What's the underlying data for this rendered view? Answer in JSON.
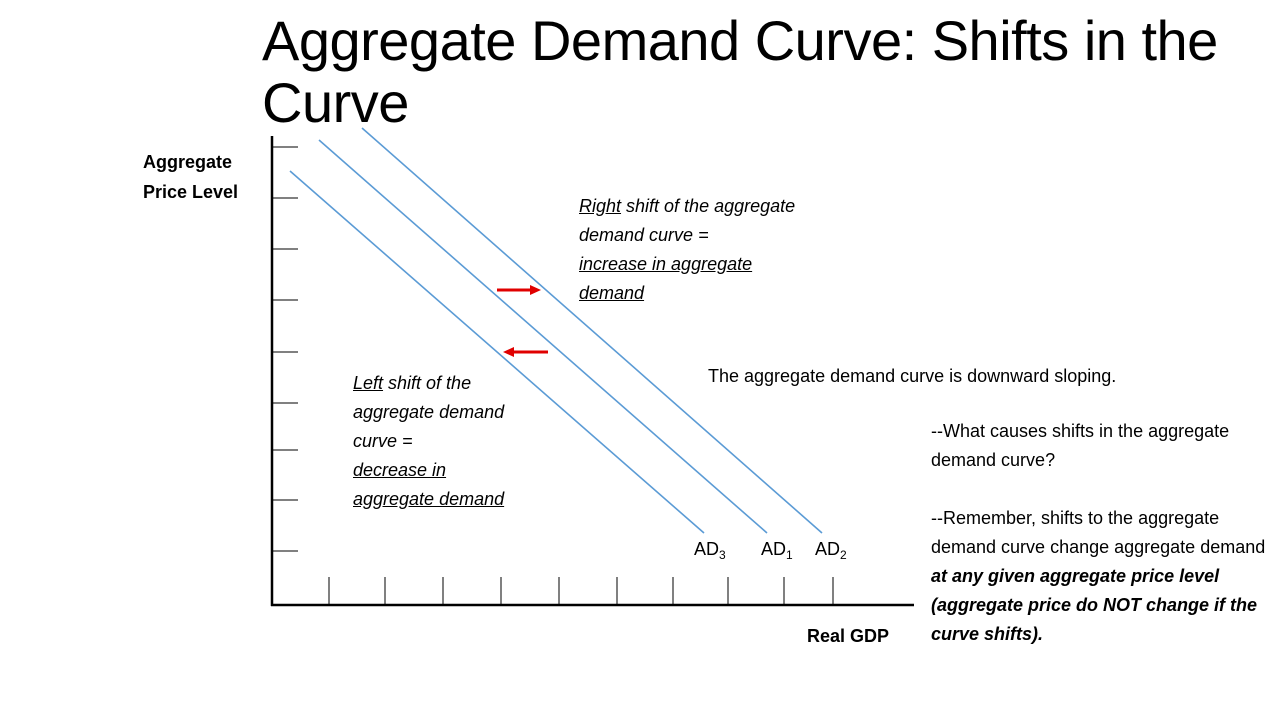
{
  "title": "Aggregate Demand Curve:  Shifts in the Curve",
  "axes": {
    "y_label_line1": "Aggregate",
    "y_label_line2": "Price Level",
    "x_label": "Real GDP"
  },
  "curves": [
    {
      "name": "AD",
      "subscript": "3"
    },
    {
      "name": "AD",
      "subscript": "1"
    },
    {
      "name": "AD",
      "subscript": "2"
    }
  ],
  "right_shift_note": {
    "underlined_word": "Right",
    "rest_line1": " shift of the aggregate",
    "line2": "demand curve =",
    "line3": "increase in aggregate",
    "line4": "demand"
  },
  "left_shift_note": {
    "underlined_word": "Left",
    "rest_line1": " shift of the",
    "line2": "aggregate demand",
    "line3": "curve =",
    "line4": "decrease in",
    "line5": "aggregate demand"
  },
  "slope_note": "The aggregate demand curve is downward sloping.",
  "causes_note": {
    "question": "--What causes shifts in the aggregate demand curve?",
    "remember_plain": "--Remember, shifts to the aggregate demand curve change aggregate demand ",
    "remember_bold": "at any given aggregate price level (aggregate price do NOT change if the curve shifts)."
  },
  "colors": {
    "curve": "#5b9bd5",
    "arrow": "#e00000",
    "axis": "#000000"
  },
  "icons": {
    "right_arrow": "arrow-right-icon",
    "left_arrow": "arrow-left-icon"
  }
}
